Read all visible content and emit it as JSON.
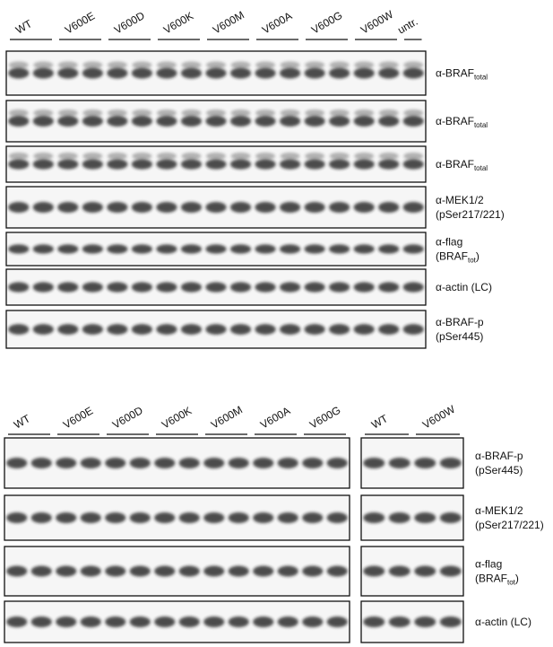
{
  "top_panel": {
    "lanes": [
      "WT",
      "V600E",
      "V600D",
      "V600K",
      "V600M",
      "V600A",
      "V600G",
      "V600W",
      "untr."
    ],
    "blots": [
      {
        "label": [
          {
            "text": "α-BRAF",
            "sub": "total"
          }
        ]
      },
      {
        "label": [
          {
            "text": "α-BRAF",
            "sub": "total"
          }
        ]
      },
      {
        "label": [
          {
            "text": "α-BRAF",
            "sub": "total"
          }
        ]
      },
      {
        "label": [
          {
            "text": "α-MEK1/2"
          },
          {
            "text": "(pSer217/221)"
          }
        ]
      },
      {
        "label": [
          {
            "text": "α-flag"
          },
          {
            "text": "(BRAF",
            "sub": "tot",
            "after": ")"
          }
        ]
      },
      {
        "label": [
          {
            "text": "α-actin (LC)"
          }
        ]
      },
      {
        "label": [
          {
            "text": "α-BRAF-p"
          },
          {
            "text": "(pSer445)"
          }
        ]
      }
    ]
  },
  "bottom_panel": {
    "left_lanes": [
      "WT",
      "V600E",
      "V600D",
      "V600K",
      "V600M",
      "V600A",
      "V600G"
    ],
    "right_lanes": [
      "WT",
      "V600W"
    ],
    "blots": [
      {
        "label": [
          {
            "text": "α-BRAF-p"
          },
          {
            "text": "(pSer445)"
          }
        ]
      },
      {
        "label": [
          {
            "text": "α-MEK1/2"
          },
          {
            "text": "(pSer217/221)"
          }
        ]
      },
      {
        "label": [
          {
            "text": "α-flag"
          },
          {
            "text": "(BRAF",
            "sub": "tot",
            "after": ")"
          }
        ]
      },
      {
        "label": [
          {
            "text": "α-actin (LC)"
          }
        ]
      }
    ]
  }
}
